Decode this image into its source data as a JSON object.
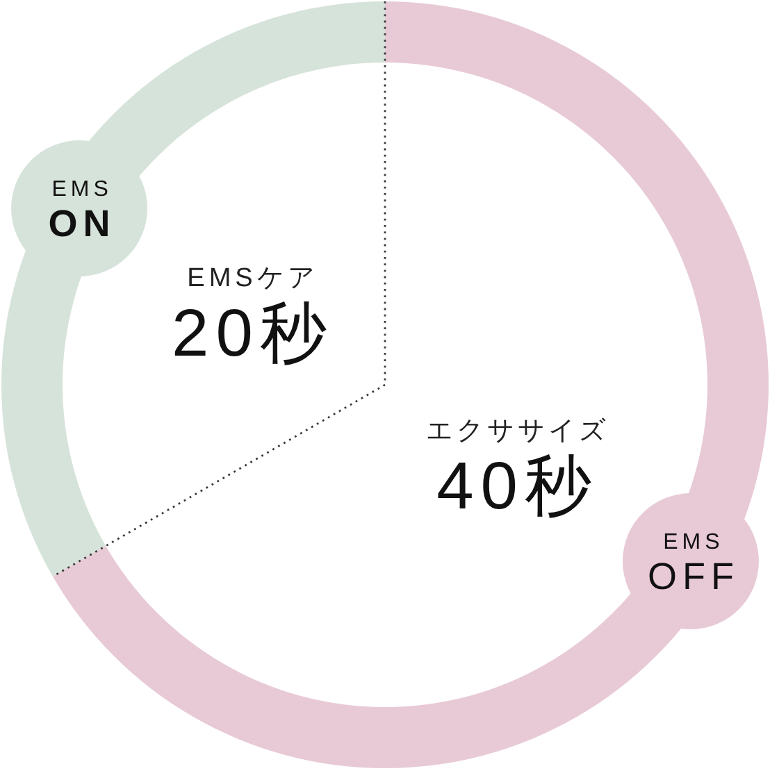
{
  "chart_data": {
    "type": "donut",
    "categories": [
      "EMSケア",
      "エクササイズ"
    ],
    "values": [
      20,
      40
    ],
    "value_labels": [
      "20秒",
      "40秒"
    ],
    "colors": [
      "#d6e3da",
      "#e8cad6"
    ],
    "annotations": [
      "EMS\nON",
      "EMS\nOFF"
    ]
  }
}
